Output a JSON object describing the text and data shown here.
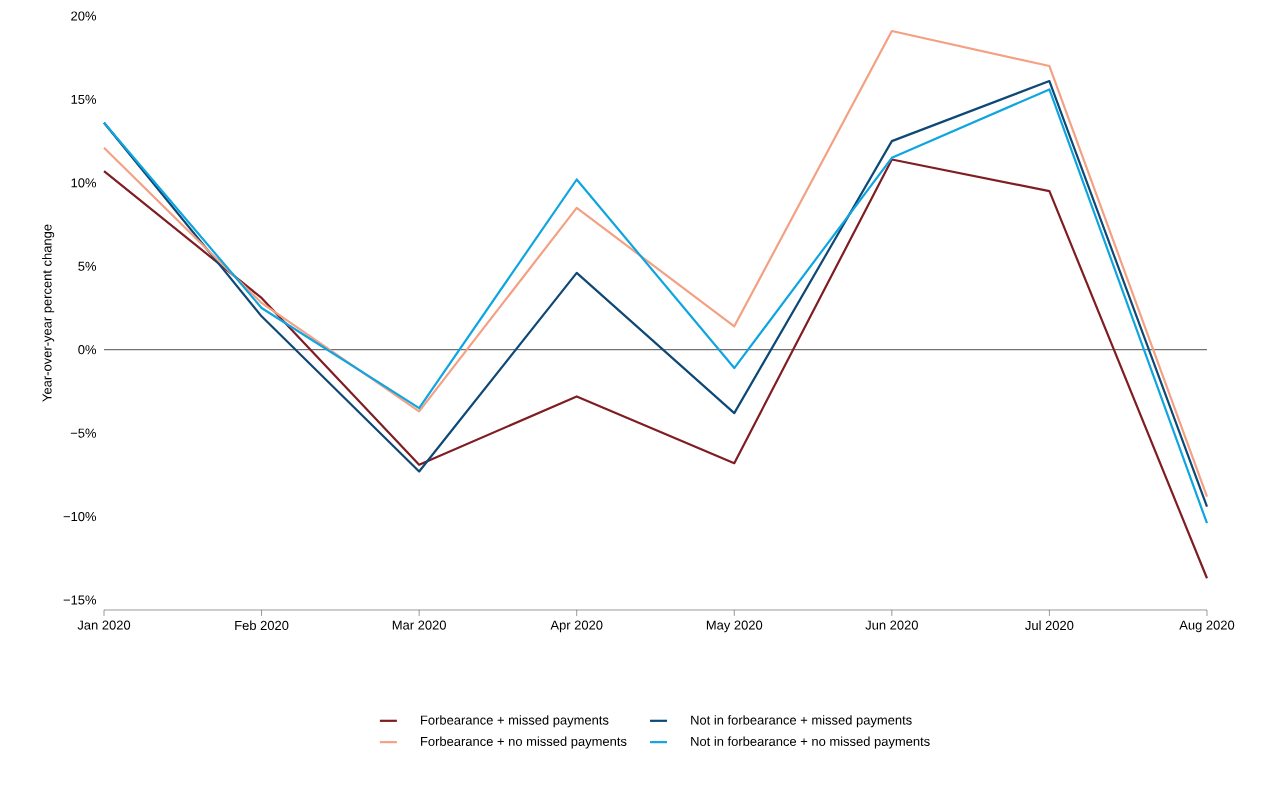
{
  "chart_data": {
    "type": "line",
    "ylabel": "Year-over-year percent change",
    "categories": [
      "Jan 2020",
      "Feb 2020",
      "Mar 2020",
      "Apr 2020",
      "May 2020",
      "Jun 2020",
      "Jul 2020",
      "Aug 2020"
    ],
    "series": [
      {
        "name": "Forbearance + missed payments",
        "color": "#7f1d22",
        "values": [
          10.7,
          3.1,
          -6.9,
          -2.8,
          -6.8,
          11.4,
          9.5,
          -13.7
        ]
      },
      {
        "name": "Not in forbearance + missed payments",
        "color": "#0d4876",
        "values": [
          13.6,
          2.0,
          -7.3,
          4.6,
          -3.8,
          12.5,
          16.1,
          -9.4
        ]
      },
      {
        "name": "Forbearance + no missed payments",
        "color": "#f4a083",
        "values": [
          12.1,
          2.8,
          -3.7,
          8.5,
          1.4,
          19.1,
          17.0,
          -8.8
        ]
      },
      {
        "name": "Not in forbearance + no missed payments",
        "color": "#0ea5e0",
        "values": [
          13.6,
          2.5,
          -3.5,
          10.2,
          -1.1,
          11.5,
          15.6,
          -10.4
        ]
      }
    ],
    "ylim": [
      -15.6,
      20
    ],
    "yticks": [
      {
        "value": -15,
        "label": "−15%"
      },
      {
        "value": -10,
        "label": "−10%"
      },
      {
        "value": -5,
        "label": "−5%"
      },
      {
        "value": 0,
        "label": "0%"
      },
      {
        "value": 5,
        "label": "5%"
      },
      {
        "value": 10,
        "label": "10%"
      },
      {
        "value": 15,
        "label": "15%"
      },
      {
        "value": 20,
        "label": "20%"
      }
    ],
    "ref_lines": [
      {
        "axis": "y",
        "value": 0,
        "color": "#000000"
      }
    ],
    "legend": "bottom",
    "marker": "none",
    "line_style": "solid",
    "grid": false
  }
}
